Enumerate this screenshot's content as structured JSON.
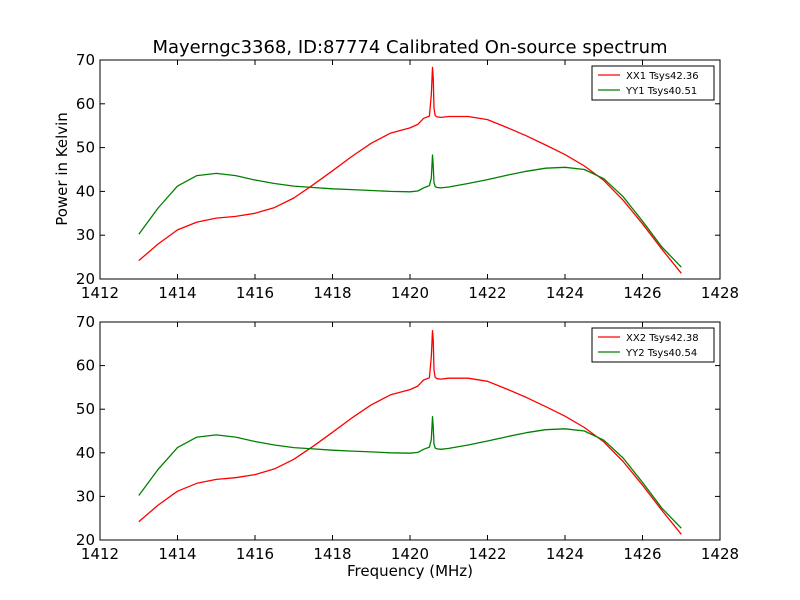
{
  "figure": {
    "title": "Mayerngc3368, ID:87774 Calibrated On-source spectrum",
    "ylabel": "Power in Kelvin",
    "xlabel": "Frequency (MHz)"
  },
  "colors": {
    "xx": "#ff0000",
    "yy": "#008000",
    "axes": "#000000",
    "background": "#ffffff"
  },
  "chart_data": [
    {
      "type": "line",
      "title": "Mayerngc3368, ID:87774 Calibrated On-source spectrum",
      "xlabel": "",
      "ylabel": "Power in Kelvin",
      "xlim": [
        1412,
        1428
      ],
      "ylim": [
        20,
        70
      ],
      "xticks": [
        1412,
        1414,
        1416,
        1418,
        1420,
        1422,
        1424,
        1426,
        1428
      ],
      "yticks": [
        20,
        30,
        40,
        50,
        60,
        70
      ],
      "grid": false,
      "legend_position": "top-right",
      "series": [
        {
          "name": "XX1 Tsys42.36",
          "color": "#ff0000",
          "x": [
            1413.0,
            1413.5,
            1414.0,
            1414.5,
            1415.0,
            1415.5,
            1416.0,
            1416.5,
            1417.0,
            1417.5,
            1418.0,
            1418.5,
            1419.0,
            1419.5,
            1420.0,
            1420.2,
            1420.35,
            1420.5,
            1420.55,
            1420.58,
            1420.6,
            1420.62,
            1420.65,
            1420.7,
            1420.8,
            1421.0,
            1421.5,
            1422.0,
            1422.5,
            1423.0,
            1423.5,
            1424.0,
            1424.5,
            1425.0,
            1425.5,
            1426.0,
            1426.5,
            1427.0
          ],
          "y": [
            24.2,
            28.0,
            31.2,
            33.0,
            33.9,
            34.3,
            35.0,
            36.3,
            38.5,
            41.5,
            44.7,
            48.0,
            51.0,
            53.3,
            54.5,
            55.3,
            56.7,
            57.2,
            62.0,
            68.3,
            66.0,
            59.0,
            57.3,
            57.0,
            56.9,
            57.1,
            57.1,
            56.4,
            54.6,
            52.7,
            50.6,
            48.4,
            45.8,
            42.5,
            38.0,
            32.6,
            26.8,
            21.3
          ]
        },
        {
          "name": "YY1 Tsys40.51",
          "color": "#008000",
          "x": [
            1413.0,
            1413.5,
            1414.0,
            1414.5,
            1415.0,
            1415.5,
            1416.0,
            1416.5,
            1417.0,
            1417.5,
            1418.0,
            1418.5,
            1419.0,
            1419.5,
            1420.0,
            1420.2,
            1420.35,
            1420.5,
            1420.55,
            1420.58,
            1420.6,
            1420.62,
            1420.65,
            1420.7,
            1420.8,
            1421.0,
            1421.5,
            1422.0,
            1422.5,
            1423.0,
            1423.5,
            1424.0,
            1424.5,
            1425.0,
            1425.5,
            1426.0,
            1426.5,
            1427.0
          ],
          "y": [
            30.2,
            36.2,
            41.2,
            43.6,
            44.1,
            43.6,
            42.6,
            41.8,
            41.2,
            40.9,
            40.6,
            40.4,
            40.2,
            40.0,
            39.9,
            40.1,
            40.8,
            41.3,
            43.0,
            48.3,
            46.0,
            42.0,
            41.1,
            40.9,
            40.8,
            41.0,
            41.8,
            42.7,
            43.7,
            44.6,
            45.3,
            45.5,
            45.0,
            42.9,
            38.8,
            33.2,
            27.3,
            22.7
          ]
        }
      ]
    },
    {
      "type": "line",
      "title": "",
      "xlabel": "Frequency (MHz)",
      "ylabel": "",
      "xlim": [
        1412,
        1428
      ],
      "ylim": [
        20,
        70
      ],
      "xticks": [
        1412,
        1414,
        1416,
        1418,
        1420,
        1422,
        1424,
        1426,
        1428
      ],
      "yticks": [
        20,
        30,
        40,
        50,
        60,
        70
      ],
      "grid": false,
      "legend_position": "top-right",
      "series": [
        {
          "name": "XX2 Tsys42.38",
          "color": "#ff0000",
          "x": [
            1413.0,
            1413.5,
            1414.0,
            1414.5,
            1415.0,
            1415.5,
            1416.0,
            1416.5,
            1417.0,
            1417.5,
            1418.0,
            1418.5,
            1419.0,
            1419.5,
            1420.0,
            1420.2,
            1420.35,
            1420.5,
            1420.55,
            1420.58,
            1420.6,
            1420.62,
            1420.65,
            1420.7,
            1420.8,
            1421.0,
            1421.5,
            1422.0,
            1422.5,
            1423.0,
            1423.5,
            1424.0,
            1424.5,
            1425.0,
            1425.5,
            1426.0,
            1426.5,
            1427.0
          ],
          "y": [
            24.2,
            28.0,
            31.2,
            33.0,
            33.9,
            34.3,
            35.0,
            36.3,
            38.5,
            41.5,
            44.7,
            48.0,
            51.0,
            53.3,
            54.5,
            55.3,
            56.7,
            57.2,
            62.0,
            68.0,
            66.0,
            59.0,
            57.3,
            57.0,
            56.9,
            57.1,
            57.1,
            56.4,
            54.6,
            52.7,
            50.6,
            48.4,
            45.8,
            42.5,
            38.0,
            32.6,
            26.8,
            21.3
          ]
        },
        {
          "name": "YY2 Tsys40.54",
          "color": "#008000",
          "x": [
            1413.0,
            1413.5,
            1414.0,
            1414.5,
            1415.0,
            1415.5,
            1416.0,
            1416.5,
            1417.0,
            1417.5,
            1418.0,
            1418.5,
            1419.0,
            1419.5,
            1420.0,
            1420.2,
            1420.35,
            1420.5,
            1420.55,
            1420.58,
            1420.6,
            1420.62,
            1420.65,
            1420.7,
            1420.8,
            1421.0,
            1421.5,
            1422.0,
            1422.5,
            1423.0,
            1423.5,
            1424.0,
            1424.5,
            1425.0,
            1425.5,
            1426.0,
            1426.5,
            1427.0
          ],
          "y": [
            30.2,
            36.2,
            41.2,
            43.6,
            44.1,
            43.6,
            42.6,
            41.8,
            41.2,
            40.9,
            40.6,
            40.4,
            40.2,
            40.0,
            39.9,
            40.1,
            40.8,
            41.3,
            43.0,
            48.3,
            46.0,
            42.0,
            41.1,
            40.9,
            40.8,
            41.0,
            41.8,
            42.7,
            43.7,
            44.6,
            45.3,
            45.5,
            45.0,
            42.9,
            38.8,
            33.2,
            27.3,
            22.7
          ]
        }
      ]
    }
  ]
}
